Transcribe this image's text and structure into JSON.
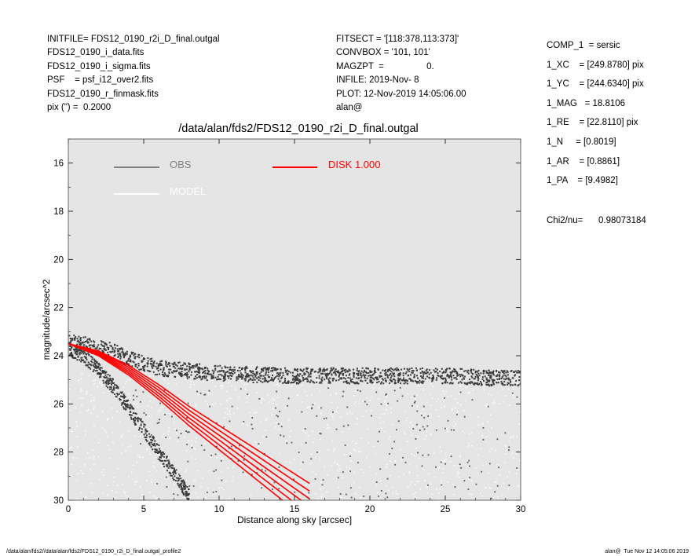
{
  "header": {
    "left": [
      "INITFILE= FDS12_0190_r2i_D_final.outgal",
      "FDS12_0190_i_data.fits",
      "FDS12_0190_i_sigma.fits",
      "PSF    = psf_i12_over2.fits",
      "FDS12_0190_r_finmask.fits",
      "pix (\") =  0.2000"
    ],
    "middle": [
      "FITSECT = '[118:378,113:373]'",
      "CONVBOX = '101, 101'",
      "MAGZPT  =                 0.",
      "INFILE: 2019-Nov- 8",
      "PLOT: 12-Nov-2019 14:05:06.00",
      "alan@"
    ],
    "right": [
      "COMP_1  = sersic",
      "1_XC    = [249.8780] pix",
      "1_YC    = [244.6340] pix",
      "1_MAG   = 18.8106",
      "1_RE    = [22.8110] pix",
      "1_N     = [0.8019]",
      "1_AR    = [0.8861]",
      "1_PA    = [9.4982]"
    ],
    "chi2_label": "Chi2/nu=",
    "chi2_value": "0.98073184"
  },
  "footer": {
    "left": "/data/alan/fds2//data/alan/fds2/FDS12_0190_r2i_D_final.outgal_profile2",
    "right": "alan@  Tue Nov 12 14:05:06 2019"
  },
  "chart_data": {
    "type": "scatter",
    "title": "/data/alan/fds2/FDS12_0190_r2i_D_final.outgal",
    "xlabel": "Distance along sky [arcsec]",
    "ylabel": "magnitude/arcsec^2",
    "xlim": [
      0,
      30
    ],
    "ylim": [
      30,
      15
    ],
    "y_inverted": true,
    "x_ticks": [
      0,
      5,
      10,
      15,
      20,
      25,
      30
    ],
    "y_ticks": [
      16,
      18,
      20,
      22,
      24,
      26,
      28,
      30
    ],
    "plot_background": "#e5e5e5",
    "grid": false,
    "legend": [
      {
        "label": "OBS",
        "color": "#808080"
      },
      {
        "label": "MODEL",
        "color": "#ffffff"
      },
      {
        "label": "DISK  1.000",
        "color": "#ff0000"
      }
    ],
    "series": [
      {
        "name": "OBS",
        "color": "#404040",
        "upper_branch": {
          "x": [
            0,
            1,
            2,
            3,
            4,
            5,
            6,
            8,
            10,
            12,
            15,
            18,
            20,
            22,
            25,
            28,
            30
          ],
          "y": [
            23.4,
            23.5,
            23.6,
            23.8,
            24.1,
            24.3,
            24.5,
            24.6,
            24.7,
            24.75,
            24.8,
            24.8,
            24.8,
            24.8,
            24.8,
            24.9,
            24.9
          ]
        },
        "lower_branch": {
          "x": [
            0,
            1,
            2,
            3,
            4,
            5,
            6,
            7,
            8
          ],
          "y": [
            23.7,
            24.0,
            24.6,
            25.3,
            26.2,
            27.1,
            28.0,
            28.9,
            29.8
          ]
        }
      },
      {
        "name": "MODEL",
        "color": "#ffffff",
        "note_range_y": [
          24.5,
          30
        ]
      },
      {
        "name": "DISK  1.000",
        "color": "#ff0000",
        "x": [
          0,
          2,
          4,
          6,
          8,
          10,
          12,
          14,
          16
        ],
        "y": [
          23.5,
          23.9,
          24.6,
          25.5,
          26.5,
          27.4,
          28.3,
          29.2,
          30.1
        ]
      }
    ]
  }
}
